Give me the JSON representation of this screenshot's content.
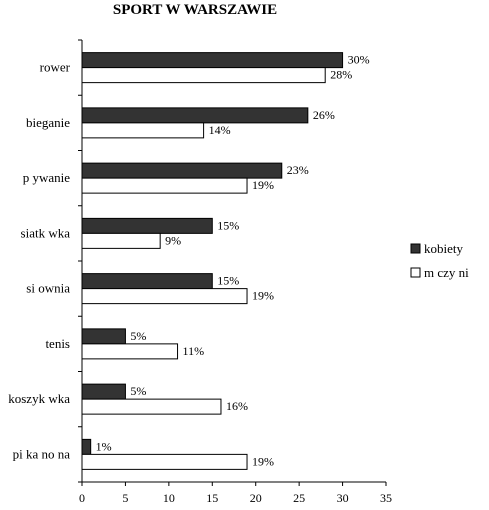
{
  "chart_data": {
    "type": "bar",
    "orientation": "horizontal",
    "title": "SPORT W WARSZAWIE",
    "categories": [
      "rower",
      "bieganie",
      "p ywanie",
      "siatk wka",
      "si ownia",
      "tenis",
      "koszyk wka",
      "pi ka no na"
    ],
    "series": [
      {
        "name": "kobiety",
        "color": "#333333",
        "values": [
          30,
          26,
          23,
          15,
          15,
          5,
          5,
          1
        ],
        "labels": [
          "30%",
          "26%",
          "23%",
          "15%",
          "15%",
          "5%",
          "5%",
          "1%"
        ]
      },
      {
        "name": "m czy ni",
        "color": "#ffffff",
        "values": [
          28,
          14,
          19,
          9,
          19,
          11,
          16,
          19
        ],
        "labels": [
          "28%",
          "14%",
          "19%",
          "9%",
          "19%",
          "11%",
          "16%",
          "19%"
        ]
      }
    ],
    "xlim": [
      0,
      35
    ],
    "xticks": [
      "0",
      "5",
      "10",
      "15",
      "20",
      "25",
      "30",
      "35"
    ],
    "xlabel": "",
    "ylabel": "",
    "grid": false,
    "legend_position": "right"
  }
}
